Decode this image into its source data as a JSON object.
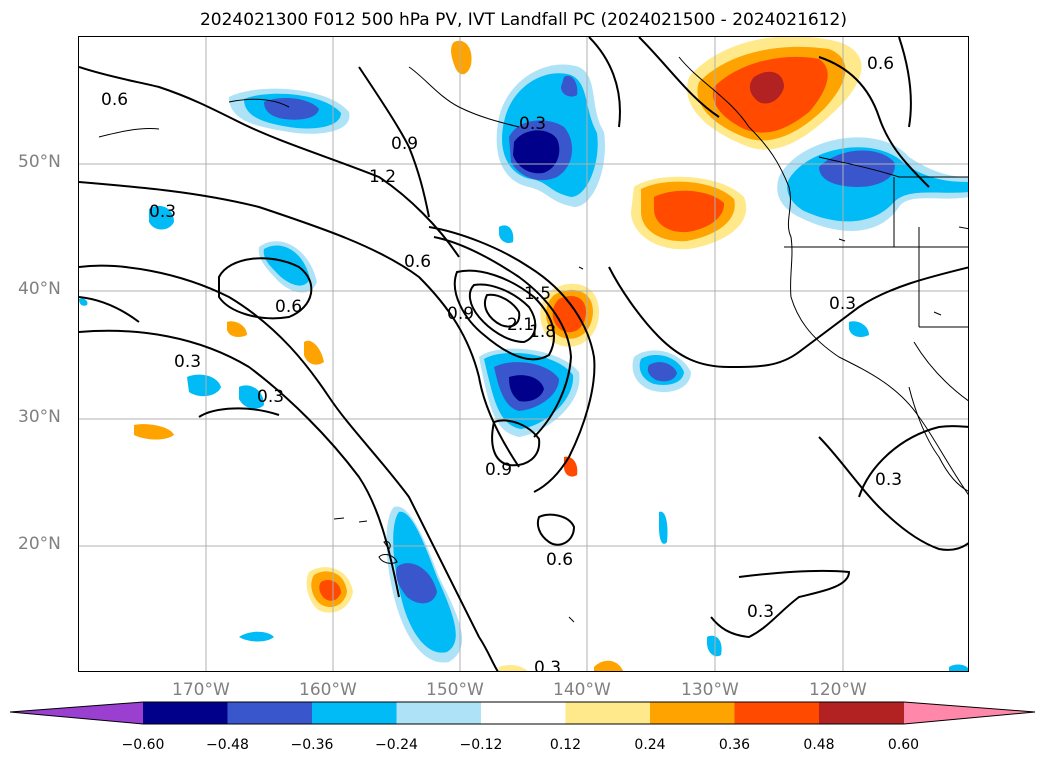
{
  "title": "2024021300 F012 500 hPa PV, IVT Landfall PC (2024021500 - 2024021612)",
  "axes": {
    "lat_labels": [
      "50°N",
      "40°N",
      "30°N",
      "20°N"
    ],
    "lon_labels": [
      "170°W",
      "160°W",
      "150°W",
      "140°W",
      "130°W",
      "120°W"
    ]
  },
  "colorbar": {
    "ticks": [
      "−0.60",
      "−0.48",
      "−0.36",
      "−0.24",
      "−0.12",
      "0.12",
      "0.24",
      "0.36",
      "0.48",
      "0.60"
    ],
    "colors": {
      "under": "#9a3fd0",
      "bins": [
        "#00008b",
        "#3a56cc",
        "#00bbf5",
        "#aee2f7",
        "#ffffff",
        "#ffe98a",
        "#ffa300",
        "#ff4a00",
        "#b22222"
      ],
      "over": "#ff88aa"
    }
  },
  "contour_labels": [
    {
      "text": "0.6"
    },
    {
      "text": "0.9"
    },
    {
      "text": "1.2"
    },
    {
      "text": "0.3"
    },
    {
      "text": "0.6"
    },
    {
      "text": "0.6"
    },
    {
      "text": "0.3"
    },
    {
      "text": "0.3"
    },
    {
      "text": "0.9"
    },
    {
      "text": "2.1"
    },
    {
      "text": "1.8"
    },
    {
      "text": "1.5"
    },
    {
      "text": "0.9"
    },
    {
      "text": "0.6"
    },
    {
      "text": "0.3"
    },
    {
      "text": "0.3"
    },
    {
      "text": "0.3"
    },
    {
      "text": "0.3"
    },
    {
      "text": "0.6"
    },
    {
      "text": "0.3"
    }
  ]
}
